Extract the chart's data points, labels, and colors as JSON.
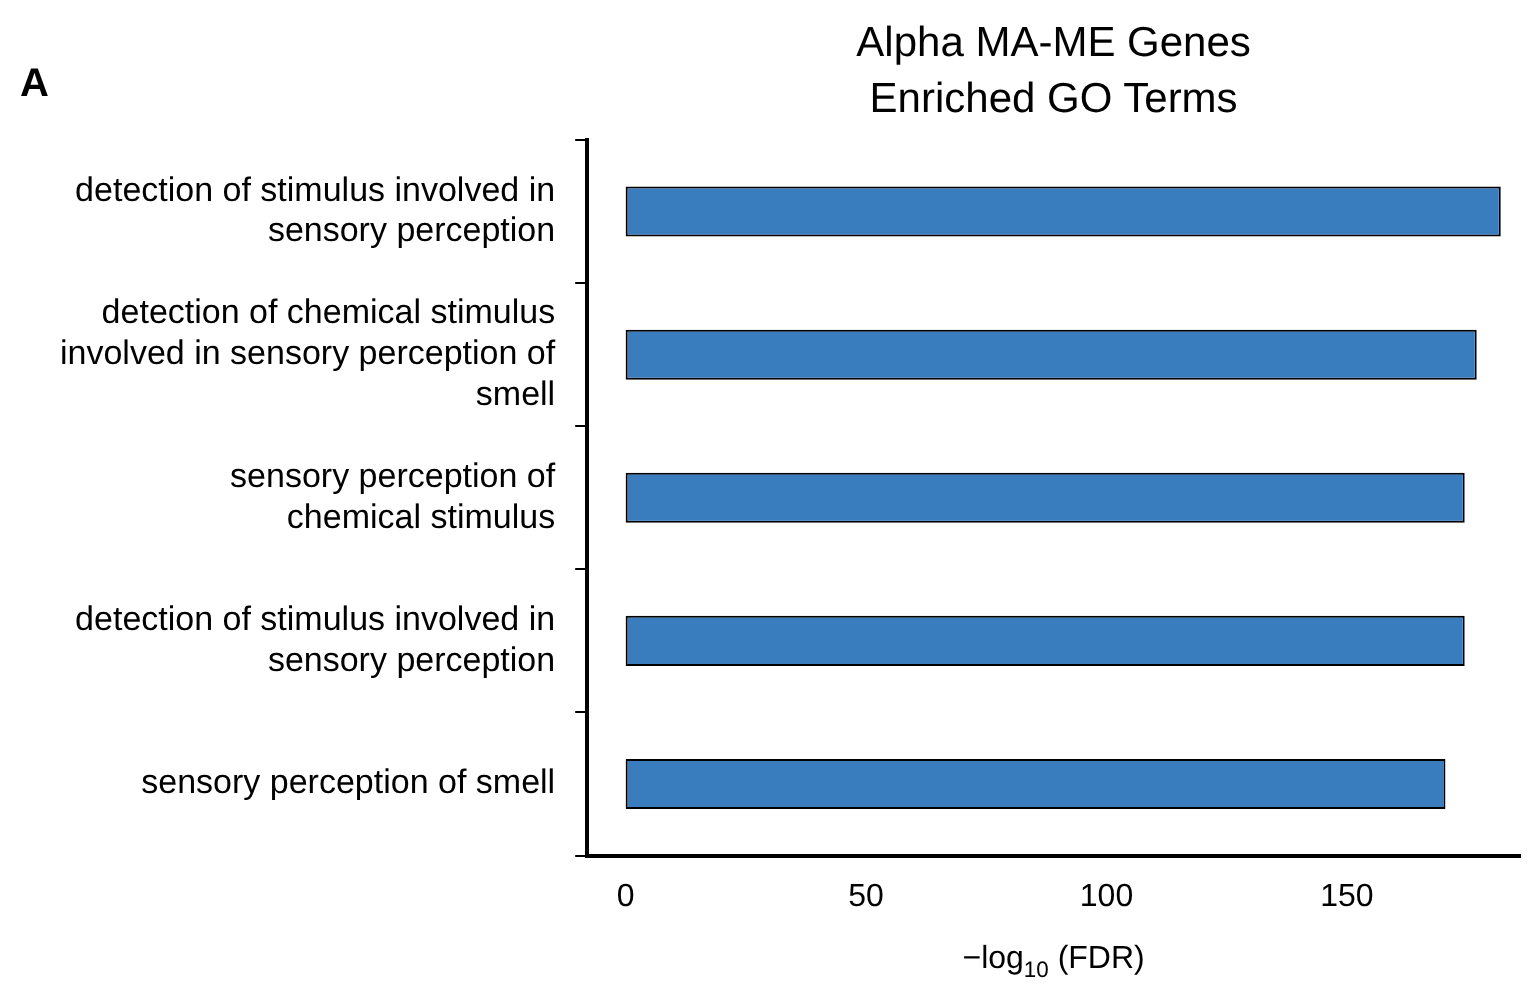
{
  "chart_data": {
    "type": "bar",
    "orientation": "horizontal",
    "title": "Alpha MA-ME Genes\nEnriched GO Terms",
    "xlabel": "−log$_{10}$ (FDR)",
    "annotations": [
      "A"
    ],
    "categories": [
      "detection of stimulus involved in\nsensory perception",
      "detection of chemical stimulus\ninvolved in sensory perception of\nsmell",
      "sensory perception of\nchemical stimulus",
      "detection of stimulus involved in\nsensory perception",
      "sensory perception of smell"
    ],
    "values": [
      182,
      177,
      174.5,
      174.5,
      170.5
    ],
    "color": "#3a7dbf",
    "xlim": [
      -8,
      186
    ],
    "xticks": [
      0,
      50,
      100,
      150
    ],
    "grid": false,
    "legend": false
  }
}
